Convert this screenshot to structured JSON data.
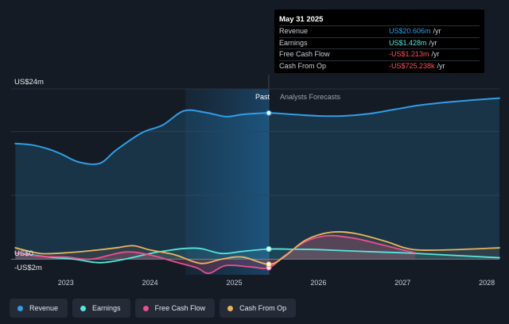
{
  "chart_data": {
    "type": "line",
    "y_axis_labels": [
      "US$24m",
      "US$0",
      "-US$2m"
    ],
    "ylim": [
      -2.2,
      24
    ],
    "xlim": [
      2022.35,
      2028.15
    ],
    "x_ticks": [
      2023,
      2024,
      2025,
      2026,
      2027,
      2028
    ],
    "x_tick_labels": [
      "2023",
      "2024",
      "2025",
      "2026",
      "2027",
      "2028"
    ],
    "past_label": "Past",
    "forecast_label": "Analysts Forecasts",
    "past_boundary": 2025.41,
    "highlight_start": 2024.42,
    "grid": true,
    "legend_position": "bottom-left",
    "series": [
      {
        "name": "Revenue",
        "color": "#2f9ee8",
        "x": [
          2022.4,
          2022.6,
          2022.8,
          2022.95,
          2023.15,
          2023.4,
          2023.6,
          2023.9,
          2024.15,
          2024.4,
          2024.65,
          2024.9,
          2025.1,
          2025.41,
          2025.7,
          2026.0,
          2026.3,
          2026.6,
          2026.9,
          2027.2,
          2027.5,
          2027.8,
          2028.15
        ],
        "y": [
          16.3,
          16.1,
          15.5,
          14.8,
          13.7,
          13.5,
          15.4,
          17.8,
          18.9,
          20.9,
          20.7,
          20.1,
          20.4,
          20.606,
          20.4,
          20.2,
          20.2,
          20.5,
          21.1,
          21.7,
          22.1,
          22.4,
          22.7
        ]
      },
      {
        "name": "Earnings",
        "color": "#57e6dc",
        "x": [
          2022.4,
          2022.8,
          2023.1,
          2023.4,
          2023.7,
          2024.0,
          2024.2,
          2024.4,
          2024.6,
          2024.85,
          2025.1,
          2025.41,
          2025.7,
          2026.0,
          2026.5,
          2027.0,
          2027.5,
          2028.15
        ],
        "y": [
          0.9,
          0.3,
          0.0,
          -0.5,
          0.0,
          0.8,
          1.2,
          1.5,
          1.5,
          0.8,
          1.1,
          1.428,
          1.4,
          1.35,
          1.1,
          0.9,
          0.6,
          0.2
        ]
      },
      {
        "name": "Free Cash Flow",
        "color": "#e8508f",
        "x": [
          2022.4,
          2022.7,
          2023.0,
          2023.3,
          2023.7,
          2024.0,
          2024.3,
          2024.55,
          2024.7,
          2024.9,
          2025.2,
          2025.41,
          2025.6,
          2025.85,
          2026.1,
          2026.4,
          2026.7,
          2027.0,
          2027.15
        ],
        "y": [
          0.9,
          0.4,
          0.3,
          0.0,
          1.0,
          0.6,
          -0.4,
          -1.2,
          -2.0,
          -0.9,
          -1.1,
          -1.213,
          0.5,
          2.5,
          3.3,
          3.0,
          2.2,
          1.3,
          0.9
        ]
      },
      {
        "name": "Cash From Op",
        "color": "#e9b45e",
        "x": [
          2022.4,
          2022.7,
          2023.0,
          2023.3,
          2023.6,
          2023.8,
          2024.0,
          2024.3,
          2024.6,
          2024.85,
          2025.1,
          2025.41,
          2025.6,
          2025.85,
          2026.15,
          2026.45,
          2026.8,
          2027.1,
          2027.5,
          2028.15
        ],
        "y": [
          1.6,
          0.8,
          0.9,
          1.2,
          1.6,
          1.9,
          1.3,
          0.6,
          -0.6,
          0.0,
          0.3,
          -0.725,
          0.4,
          2.7,
          3.8,
          3.6,
          2.5,
          1.4,
          1.3,
          1.6
        ]
      }
    ]
  },
  "tooltip": {
    "date": "May 31 2025",
    "rows": [
      {
        "label": "Revenue",
        "value": "US$20.606m",
        "unit": "/yr",
        "color": "#2f9ee8"
      },
      {
        "label": "Earnings",
        "value": "US$1.428m",
        "unit": "/yr",
        "color": "#57e6dc"
      },
      {
        "label": "Free Cash Flow",
        "value": "-US$1.213m",
        "unit": "/yr",
        "color": "#ff4d5e"
      },
      {
        "label": "Cash From Op",
        "value": "-US$725.238k",
        "unit": "/yr",
        "color": "#ff4d5e"
      }
    ]
  },
  "legend": [
    {
      "label": "Revenue",
      "color": "#2f9ee8"
    },
    {
      "label": "Earnings",
      "color": "#57e6dc"
    },
    {
      "label": "Free Cash Flow",
      "color": "#e8508f"
    },
    {
      "label": "Cash From Op",
      "color": "#e9b45e"
    }
  ]
}
